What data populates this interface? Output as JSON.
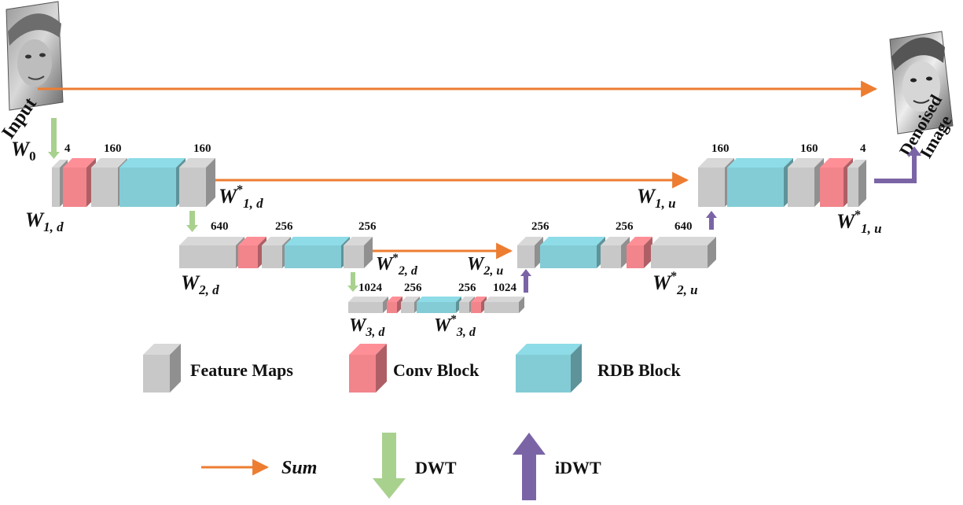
{
  "colors": {
    "feature": "#c8c8c8",
    "conv": "#f2848c",
    "rdb": "#83ccd6",
    "sum_arrow": "#ed7d31",
    "dwt_arrow": "#a9d18e",
    "idwt_arrow": "#7b64a6"
  },
  "images": {
    "input_label": "Input",
    "output_label_line1": "Denoised",
    "output_label_line2": "Image"
  },
  "encoder": {
    "w0": "W",
    "w0_sub": "0",
    "level1": {
      "ch_a": "4",
      "ch_b": "160",
      "ch_c": "160",
      "in_var": "W",
      "in_sub": "1, d",
      "out_var": "W",
      "out_sup": "*",
      "out_sub": "1, d"
    },
    "level2": {
      "ch_a": "640",
      "ch_b": "256",
      "ch_c": "256",
      "in_var": "W",
      "in_sub": "2, d",
      "out_var": "W",
      "out_sup": "*",
      "out_sub": "2, d"
    },
    "level3": {
      "ch_a": "1024",
      "ch_b": "256",
      "ch_c": "256",
      "ch_d": "1024",
      "in_var": "W",
      "in_sub": "3, d",
      "out_var": "W",
      "out_sup": "*",
      "out_sub": "3, d"
    }
  },
  "decoder": {
    "level2": {
      "ch_a": "256",
      "ch_b": "256",
      "ch_c": "640",
      "in_var": "W",
      "in_sub": "2, u",
      "out_var": "W",
      "out_sup": "*",
      "out_sub": "2, u"
    },
    "level1": {
      "ch_a": "160",
      "ch_b": "160",
      "ch_c": "4",
      "in_var": "W",
      "in_sub": "1, u",
      "out_var": "W",
      "out_sup": "*",
      "out_sub": "1, u"
    }
  },
  "legend": {
    "feature_maps": "Feature Maps",
    "conv_block": "Conv Block",
    "rdb_block": "RDB Block",
    "sum": "Sum",
    "dwt": "DWT",
    "idwt": "iDWT"
  }
}
